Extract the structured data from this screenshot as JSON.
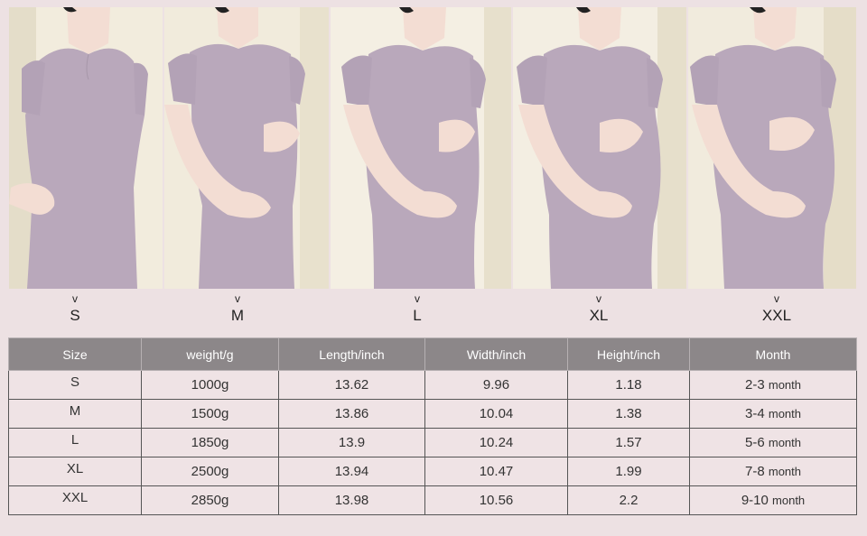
{
  "photos": [
    {
      "size": "S",
      "icon": "model-photo"
    },
    {
      "size": "M",
      "icon": "model-photo"
    },
    {
      "size": "L",
      "icon": "model-photo"
    },
    {
      "size": "XL",
      "icon": "model-photo"
    },
    {
      "size": "XXL",
      "icon": "model-photo"
    }
  ],
  "size_labels": [
    {
      "chevron": "v",
      "label": "S"
    },
    {
      "chevron": "v",
      "label": "M"
    },
    {
      "chevron": "v",
      "label": "L"
    },
    {
      "chevron": "v",
      "label": "XL"
    },
    {
      "chevron": "v",
      "label": "XXL"
    }
  ],
  "table": {
    "headers": [
      "Size",
      "weight/g",
      "Length/inch",
      "Width/inch",
      "Height/inch",
      "Month"
    ],
    "rows": [
      {
        "size": "S",
        "weight": "1000g",
        "length": "13.62",
        "width": "9.96",
        "height": "1.18",
        "month_num": "2-3",
        "month_unit": "month"
      },
      {
        "size": "M",
        "weight": "1500g",
        "length": "13.86",
        "width": "10.04",
        "height": "1.38",
        "month_num": "3-4",
        "month_unit": "month"
      },
      {
        "size": "L",
        "weight": "1850g",
        "length": "13.9",
        "width": "10.24",
        "height": "1.57",
        "month_num": "5-6",
        "month_unit": "month"
      },
      {
        "size": "XL",
        "weight": "2500g",
        "length": "13.94",
        "width": "10.47",
        "height": "1.99",
        "month_num": "7-8",
        "month_unit": "month"
      },
      {
        "size": "XXL",
        "weight": "2850g",
        "length": "13.98",
        "width": "10.56",
        "height": "2.2",
        "month_num": "9-10",
        "month_unit": "month"
      }
    ]
  },
  "colors": {
    "background": "#ede1e3",
    "header_bg": "#8c8789",
    "cell_bg": "#efe3e5",
    "dress": "#b9a8bb",
    "skin": "#f3ddd3"
  }
}
